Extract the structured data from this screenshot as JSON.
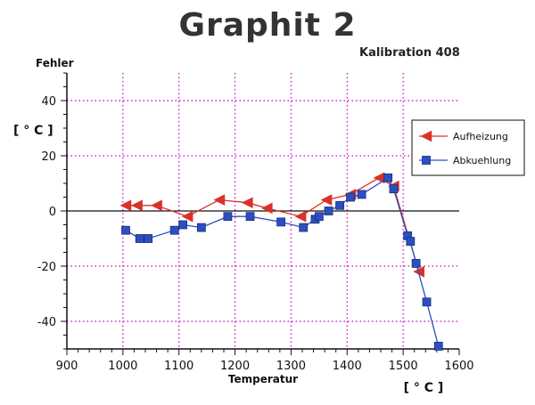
{
  "chart_data": {
    "type": "line",
    "title": "Graphit 2",
    "subtitle": "Kalibration 408",
    "xlabel": "Temperatur",
    "xunit": "[ ° C ]",
    "ylabel": "Fehler",
    "yunit": "[ ° C ]",
    "xlim": [
      900,
      1600
    ],
    "ylim": [
      -50,
      50
    ],
    "xticks": [
      900,
      1000,
      1100,
      1200,
      1300,
      1400,
      1500,
      1600
    ],
    "yticks": [
      -40,
      -20,
      0,
      20,
      40
    ],
    "grid": true,
    "legend_position": "right",
    "series": [
      {
        "name": "Aufheizung",
        "color": "#d9322a",
        "marker": "triangle-left",
        "x": [
          1005,
          1025,
          1060,
          1115,
          1172,
          1222,
          1257,
          1317,
          1363,
          1406,
          1457,
          1483,
          1528
        ],
        "y": [
          2,
          2,
          2,
          -2,
          4,
          3,
          1,
          -2,
          4,
          6,
          12,
          9,
          -22
        ]
      },
      {
        "name": "Abkuehlung",
        "color": "#2c4fc0",
        "marker": "square",
        "x": [
          1005,
          1030,
          1045,
          1092,
          1107,
          1140,
          1187,
          1227,
          1282,
          1322,
          1343,
          1350,
          1367,
          1387,
          1406,
          1426,
          1473,
          1483,
          1508,
          1513,
          1523,
          1542,
          1563
        ],
        "y": [
          -7,
          -10,
          -10,
          -7,
          -5,
          -6,
          -2,
          -2,
          -4,
          -6,
          -3,
          -2,
          0,
          2,
          5,
          6,
          12,
          8,
          -9,
          -11,
          -19,
          -33,
          -49
        ]
      }
    ]
  }
}
